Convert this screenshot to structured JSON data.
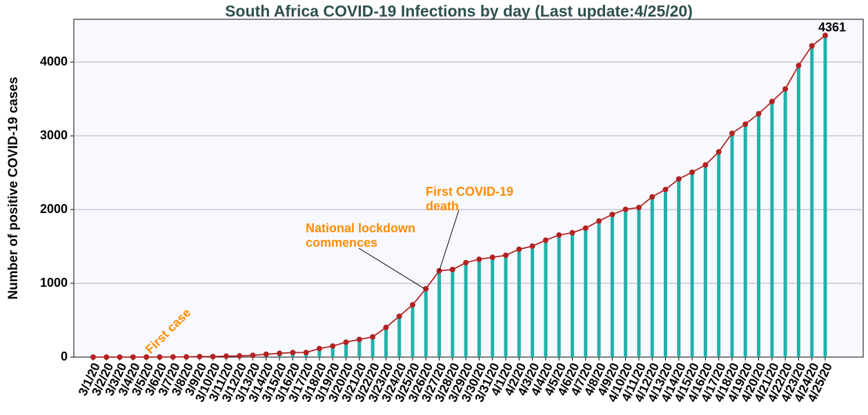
{
  "chart_data": {
    "type": "bar",
    "title": "South Africa COVID-19 Infections by day (Last update:4/25/20)",
    "y_label": "Number of positive COVID-19 cases",
    "categories": [
      "3/1/20",
      "3/2/20",
      "3/3/20",
      "3/4/20",
      "3/5/20",
      "3/6/20",
      "3/7/20",
      "3/8/20",
      "3/9/20",
      "3/10/20",
      "3/11/20",
      "3/12/20",
      "3/13/20",
      "3/14/20",
      "3/15/20",
      "3/16/20",
      "3/17/20",
      "3/18/20",
      "3/19/20",
      "3/20/20",
      "3/21/20",
      "3/22/20",
      "3/23/20",
      "3/24/20",
      "3/25/20",
      "3/26/20",
      "3/27/20",
      "3/28/20",
      "3/29/20",
      "3/30/20",
      "3/31/20",
      "4/1/20",
      "4/2/20",
      "4/3/20",
      "4/4/20",
      "4/5/20",
      "4/6/20",
      "4/7/20",
      "4/8/20",
      "4/9/20",
      "4/10/20",
      "4/11/20",
      "4/12/20",
      "4/13/20",
      "4/14/20",
      "4/15/20",
      "4/16/20",
      "4/17/20",
      "4/18/20",
      "4/19/20",
      "4/20/20",
      "4/21/20",
      "4/22/20",
      "4/23/20",
      "4/24/20",
      "4/25/20"
    ],
    "values": [
      0,
      0,
      0,
      0,
      1,
      1,
      2,
      3,
      7,
      7,
      13,
      16,
      24,
      38,
      51,
      62,
      62,
      116,
      150,
      202,
      240,
      274,
      402,
      554,
      709,
      927,
      1170,
      1187,
      1280,
      1326,
      1353,
      1380,
      1462,
      1505,
      1585,
      1655,
      1686,
      1749,
      1845,
      1934,
      2003,
      2028,
      2173,
      2272,
      2415,
      2506,
      2605,
      2783,
      3034,
      3158,
      3300,
      3465,
      3635,
      3953,
      4220,
      4361
    ],
    "bar_color": "#20b2aa",
    "line_color": "#b22222",
    "ylim": [
      0,
      4580
    ],
    "yticks": [
      0,
      1000,
      2000,
      3000,
      4000
    ],
    "grid": true,
    "annotations": [
      "First case",
      "National lockdown\ncommences",
      "First COVID-19\ndeath"
    ]
  }
}
